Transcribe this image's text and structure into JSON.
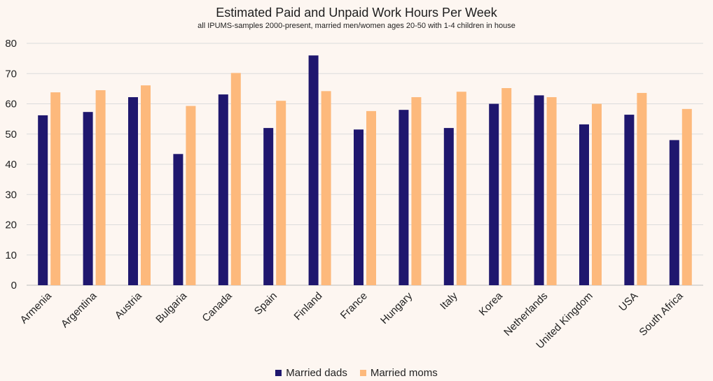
{
  "chart_data": {
    "type": "bar",
    "title": "Estimated Paid and Unpaid Work Hours Per Week",
    "subtitle": "all IPUMS-samples 2000-present, married men/women ages 20-50 with 1-4 children in house",
    "xlabel": "",
    "ylabel": "",
    "ylim": [
      0,
      80
    ],
    "yticks": [
      0,
      10,
      20,
      30,
      40,
      50,
      60,
      70,
      80
    ],
    "grid": true,
    "legend_position": "bottom",
    "categories": [
      "Armenia",
      "Argentina",
      "Austria",
      "Bulgaria",
      "Canada",
      "Spain",
      "Finland",
      "France",
      "Hungary",
      "Italy",
      "Korea",
      "Netherlands",
      "United Kingdom",
      "USA",
      "South Africa"
    ],
    "series": [
      {
        "name": "Married dads",
        "color": "#1f176e",
        "values": [
          56.2,
          57.3,
          62.2,
          43.4,
          63.1,
          52.0,
          76.0,
          51.5,
          58.0,
          52.0,
          60.0,
          62.8,
          53.2,
          56.4,
          48.0
        ]
      },
      {
        "name": "Married moms",
        "color": "#fdb97c",
        "values": [
          63.8,
          64.5,
          66.1,
          59.3,
          70.2,
          61.0,
          64.2,
          57.6,
          62.2,
          64.0,
          65.2,
          62.2,
          60.0,
          63.6,
          58.3
        ]
      }
    ]
  }
}
